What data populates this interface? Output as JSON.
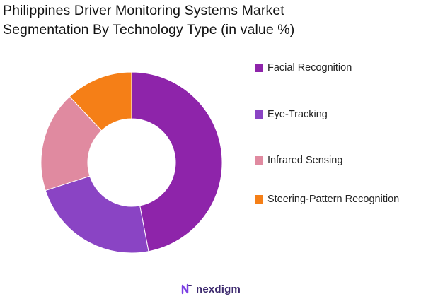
{
  "chart_data": {
    "type": "pie",
    "title_lines": [
      "Philippines Driver Monitoring Systems Market",
      "Segmentation By Technology Type (in value %)"
    ],
    "categories": [
      "Facial Recognition",
      "Eye-Tracking",
      "Infrared Sensing",
      "Steering-Pattern Recognition"
    ],
    "values": [
      47,
      23,
      18,
      12
    ],
    "colors": [
      "#8e24aa",
      "#8a44c4",
      "#e08aa0",
      "#f57f17"
    ],
    "legend_position": "right",
    "donut": true
  },
  "brand": {
    "name": "nexdigm",
    "icon": "nexdigm-logo-icon"
  }
}
